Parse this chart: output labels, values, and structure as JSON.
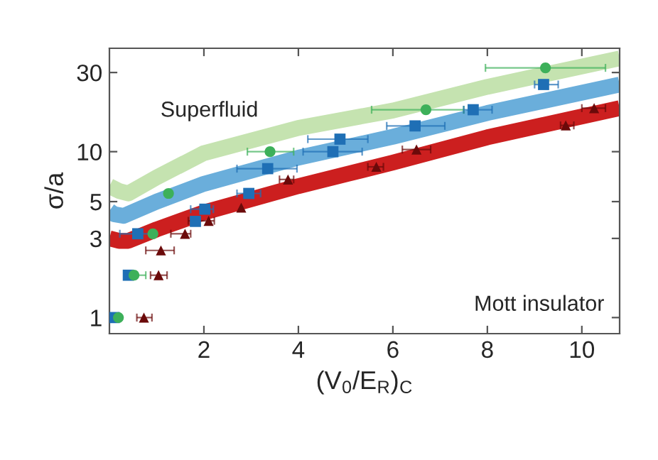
{
  "chart_data": {
    "type": "scatter",
    "xlabel": "(V$_{0}$/E$_{R}$)$_{C}$",
    "ylabel": "σ/a",
    "log": "y",
    "grid": false,
    "xlim": [
      0,
      10.8
    ],
    "ylim": [
      0.8,
      42
    ],
    "xticks": [
      2,
      4,
      6,
      8,
      10
    ],
    "yticks": [
      1,
      3,
      5,
      10,
      30
    ],
    "annotations": [
      "Superfluid",
      "Mott insulator"
    ],
    "series": [
      {
        "type": "line",
        "color": "#c5e3b0",
        "marker": "none",
        "x": [
          0,
          0.2,
          0.4,
          1,
          2,
          4,
          6,
          8,
          10.8
        ],
        "values": [
          6.2,
          5.8,
          5.6,
          7,
          9.8,
          13.9,
          17.7,
          24.6,
          36.5
        ]
      },
      {
        "type": "line",
        "color": "#6aaedb",
        "marker": "none",
        "x": [
          0,
          0.1,
          0.3,
          1,
          2,
          4,
          6,
          8,
          10.8
        ],
        "values": [
          4.4,
          4.2,
          4.1,
          5,
          6.4,
          9.2,
          12.3,
          17.1,
          25.4
        ]
      },
      {
        "type": "line",
        "color": "#cc1f1f",
        "marker": "none",
        "x": [
          0,
          0.2,
          0.4,
          1,
          2,
          4,
          6,
          8,
          10.8
        ],
        "values": [
          3.0,
          2.9,
          2.9,
          3.4,
          4.3,
          6.2,
          8.6,
          12.2,
          18.3
        ]
      },
      {
        "color": "#3db05a",
        "marker": "circle",
        "x": [
          0.19,
          0.52,
          0.92,
          1.25,
          3.4,
          6.7,
          9.23
        ],
        "values": [
          1,
          1.8,
          3.2,
          5.6,
          10,
          17.9,
          32
        ],
        "xerrors": [
          null,
          [
            0.52,
            0.77
          ],
          null,
          null,
          [
            2.92,
            3.9
          ],
          [
            5.55,
            7.5
          ],
          [
            7.96,
            10.5
          ]
        ]
      },
      {
        "color": "#1f6fb5",
        "marker": "square",
        "x": [
          0.1,
          0.4,
          0.6,
          1.82,
          2.02,
          2.95,
          3.35,
          4.73,
          4.88,
          6.47,
          7.7,
          9.19
        ],
        "values": [
          1,
          1.8,
          3.2,
          3.8,
          4.5,
          5.6,
          7.9,
          10,
          11.9,
          14.3,
          17.9,
          25.4
        ],
        "xerrors": [
          null,
          null,
          [
            0.22,
            0.97
          ],
          null,
          [
            1.72,
            2.2
          ],
          [
            2.7,
            3.2
          ],
          [
            2.7,
            3.97
          ],
          [
            4.1,
            5.35
          ],
          [
            4.2,
            5.47
          ],
          [
            5.87,
            7.1
          ],
          [
            7.5,
            8.1
          ],
          [
            9.0,
            9.5
          ]
        ]
      },
      {
        "color": "#6b0a0a",
        "marker": "triangle",
        "x": [
          0.73,
          1.04,
          1.09,
          1.6,
          2.1,
          2.79,
          3.78,
          5.65,
          6.5,
          9.66,
          10.26
        ],
        "values": [
          1,
          1.8,
          2.54,
          3.2,
          3.83,
          4.6,
          6.8,
          8.1,
          10.3,
          14.4,
          18.3
        ],
        "xerrors": [
          [
            0.58,
            0.9
          ],
          [
            0.87,
            1.22
          ],
          [
            0.77,
            1.37
          ],
          [
            1.3,
            1.72
          ],
          [
            1.67,
            2.22
          ],
          null,
          [
            3.6,
            3.9
          ],
          [
            5.47,
            5.8
          ],
          [
            6.2,
            6.8
          ],
          [
            9.55,
            9.83
          ],
          [
            10.0,
            10.5
          ]
        ]
      }
    ]
  }
}
